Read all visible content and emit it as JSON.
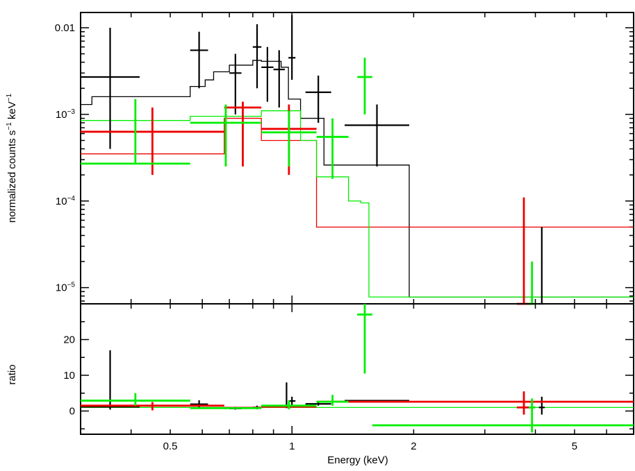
{
  "colors": {
    "black": "#000000",
    "red": "#ee0000",
    "green": "#00ee00"
  },
  "chart_data": [
    {
      "type": "line",
      "title": "",
      "ylabel": "normalized counts s",
      "ylabel_sup1": "−1",
      "ylabel_mid": " keV",
      "ylabel_sup2": "−1",
      "xscale": "log",
      "yscale": "log",
      "xlim": [
        0.3,
        7.0
      ],
      "ylim": [
        6.5e-06,
        0.015
      ],
      "ytick_values": [
        0.01,
        0.001,
        0.0001,
        1e-05
      ],
      "ytick_labels": [
        {
          "base": "0.01",
          "sup": ""
        },
        {
          "base": "10",
          "sup": "−3"
        },
        {
          "base": "10",
          "sup": "−4"
        },
        {
          "base": "10",
          "sup": "−5"
        }
      ],
      "data_series": [
        {
          "color": "black",
          "points": [
            [
              0.3,
              0.42,
              0.0027,
              0.0004,
              0.01
            ],
            [
              0.56,
              0.62,
              0.0055,
              0.002,
              0.009
            ],
            [
              0.7,
              0.75,
              0.003,
              0.001,
              0.005
            ],
            [
              0.8,
              0.84,
              0.006,
              0.002,
              0.011
            ],
            [
              0.84,
              0.9,
              0.0035,
              0.0014,
              0.006
            ],
            [
              0.9,
              0.96,
              0.0033,
              0.0012,
              0.0055
            ],
            [
              0.98,
              1.02,
              0.0045,
              0.0025,
              0.014
            ],
            [
              1.08,
              1.25,
              0.0018,
              0.0008,
              0.0028
            ],
            [
              1.35,
              1.95,
              0.00075,
              0.00025,
              0.0013
            ],
            [
              4.08,
              4.22,
              5.5e-06,
              4.5e-06,
              5e-05
            ]
          ]
        },
        {
          "color": "red",
          "points": [
            [
              0.3,
              0.68,
              0.00063,
              0.0002,
              0.0012
            ],
            [
              0.68,
              0.84,
              0.0012,
              0.00025,
              0.0014
            ],
            [
              0.84,
              1.15,
              0.00068,
              0.0002,
              0.0013
            ],
            [
              3.6,
              3.9,
              5.5e-06,
              4.5e-06,
              0.00011
            ]
          ]
        },
        {
          "color": "green",
          "points": [
            [
              0.3,
              0.56,
              0.00027,
              0.00027,
              0.0015
            ],
            [
              0.56,
              0.84,
              0.0008,
              0.00025,
              0.0013
            ],
            [
              0.84,
              1.15,
              0.00062,
              0.00025,
              0.0011
            ],
            [
              1.15,
              1.38,
              0.00055,
              0.00018,
              0.0009
            ],
            [
              1.45,
              1.58,
              0.0027,
              0.001,
              0.0045
            ],
            [
              3.85,
              4.0,
              5.5e-06,
              4.5e-06,
              2e-05
            ]
          ]
        }
      ],
      "model_series": [
        {
          "color": "black",
          "steps": [
            [
              0.3,
              0.0013
            ],
            [
              0.32,
              0.0016
            ],
            [
              0.56,
              0.0021
            ],
            [
              0.61,
              0.0025
            ],
            [
              0.64,
              0.0031
            ],
            [
              0.7,
              0.0037
            ],
            [
              0.8,
              0.0042
            ],
            [
              0.84,
              0.0041
            ],
            [
              0.94,
              0.0035
            ],
            [
              0.98,
              0.0015
            ],
            [
              1.05,
              0.0009
            ],
            [
              1.2,
              0.00026
            ],
            [
              1.95,
              7.8e-06
            ],
            [
              7.0,
              7.8e-06
            ]
          ]
        },
        {
          "color": "red",
          "steps": [
            [
              0.3,
              0.00035
            ],
            [
              0.68,
              0.0009
            ],
            [
              0.84,
              0.0005
            ],
            [
              1.15,
              5e-05
            ],
            [
              7.0,
              5e-05
            ]
          ]
        },
        {
          "color": "green",
          "steps": [
            [
              0.3,
              0.00085
            ],
            [
              0.56,
              0.00095
            ],
            [
              0.84,
              0.0011
            ],
            [
              1.05,
              0.0005
            ],
            [
              1.15,
              0.00019
            ],
            [
              1.38,
              0.0001
            ],
            [
              1.48,
              9.5e-05
            ],
            [
              1.55,
              7.8e-06
            ],
            [
              7.0,
              7.8e-06
            ]
          ]
        }
      ]
    },
    {
      "type": "line",
      "title": "",
      "ylabel": "ratio",
      "xlabel": "Energy (keV)",
      "xscale": "log",
      "xlim": [
        0.3,
        7.0
      ],
      "ylim": [
        -6.5,
        30
      ],
      "yticks": [
        0,
        10,
        20
      ],
      "xticks": [
        0.5,
        1,
        2,
        5
      ],
      "xtick_labels": [
        "0.5",
        "1",
        "2",
        "5"
      ],
      "data_series": [
        {
          "color": "black",
          "points": [
            [
              0.3,
              0.42,
              1.2,
              0.4,
              17
            ],
            [
              0.56,
              0.62,
              1.9,
              1,
              3
            ],
            [
              0.7,
              0.75,
              0.7,
              0.4,
              1.2
            ],
            [
              0.8,
              0.84,
              1.0,
              0.5,
              1.5
            ],
            [
              0.94,
              1.0,
              1.5,
              0.8,
              8
            ],
            [
              0.98,
              1.02,
              2.8,
              1.2,
              4
            ],
            [
              1.08,
              1.25,
              2.0,
              1.5,
              2.5
            ],
            [
              1.35,
              1.95,
              2.9,
              2.8,
              3.0
            ],
            [
              4.08,
              4.22,
              1.0,
              -1,
              4
            ]
          ]
        },
        {
          "color": "red",
          "points": [
            [
              0.3,
              0.68,
              1.5,
              0.2,
              2.5
            ],
            [
              0.68,
              0.84,
              0.9,
              0.8,
              1.0
            ],
            [
              0.84,
              1.15,
              1.2,
              0.5,
              2.0
            ],
            [
              1.15,
              7.0,
              2.6,
              2.6,
              2.6
            ],
            [
              3.6,
              3.9,
              1.0,
              -1,
              5.5
            ]
          ]
        },
        {
          "color": "green",
          "points": [
            [
              0.3,
              0.56,
              2.9,
              1.5,
              5
            ],
            [
              0.56,
              0.84,
              0.8,
              0.5,
              1
            ],
            [
              0.84,
              1.15,
              1.5,
              0.5,
              3
            ],
            [
              1.15,
              1.38,
              2.6,
              1.5,
              4.5
            ],
            [
              1.45,
              1.58,
              27,
              10.5,
              30
            ],
            [
              1.58,
              7.0,
              -4,
              -4,
              -4
            ],
            [
              3.85,
              4.0,
              1.0,
              -6,
              3.5
            ]
          ]
        }
      ],
      "model_series": [
        {
          "color": "green",
          "steps": [
            [
              0.3,
              1.0
            ],
            [
              7.0,
              1.0
            ]
          ]
        }
      ]
    }
  ]
}
